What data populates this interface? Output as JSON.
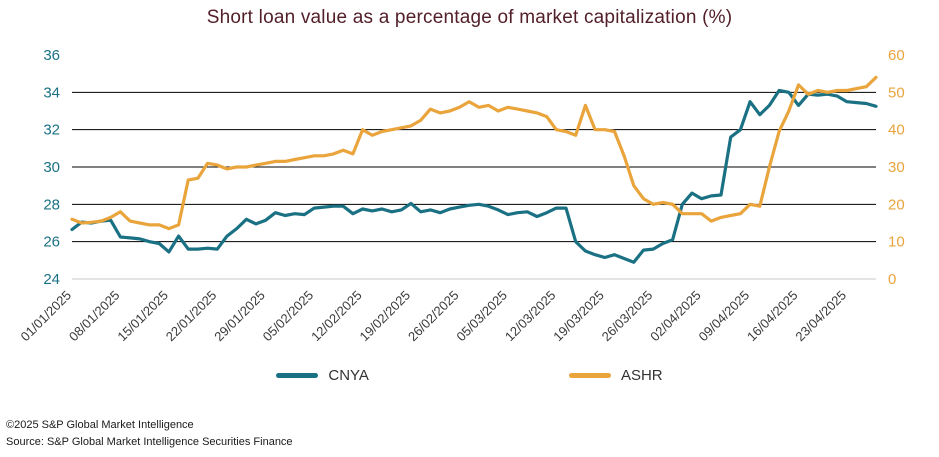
{
  "footer": {
    "copyright": "©2025 S&P Global Market Intelligence",
    "source": "Source: S&P Global Market Intelligence Securities Finance"
  },
  "chart_data": {
    "type": "line",
    "title": "Short loan value as a percentage of market capitalization (%)",
    "x_tick_labels": [
      "01/01/2025",
      "08/01/2025",
      "15/01/2025",
      "22/01/2025",
      "29/01/2025",
      "05/02/2025",
      "12/02/2025",
      "19/02/2025",
      "26/02/2025",
      "05/03/2025",
      "12/03/2025",
      "19/03/2025",
      "26/03/2025",
      "02/04/2025",
      "09/04/2025",
      "16/04/2025",
      "23/04/2025"
    ],
    "points_per_tick": 5,
    "left_axis": {
      "min": 24,
      "max": 36,
      "ticks": [
        24,
        26,
        28,
        30,
        32,
        34,
        36
      ],
      "color": "#1b7184"
    },
    "right_axis": {
      "min": 0,
      "max": 60,
      "ticks": [
        0,
        10,
        20,
        30,
        40,
        50,
        60
      ],
      "color": "#eaa43c"
    },
    "gridline_color": "#000000",
    "baseline_color": "#c8c8c8",
    "legend_position": "bottom",
    "series": [
      {
        "name": "CNYA",
        "axis": "left",
        "color": "#1b7184",
        "values": [
          26.65,
          27.05,
          27.0,
          27.1,
          27.15,
          26.25,
          26.2,
          26.15,
          26.0,
          25.9,
          25.45,
          26.3,
          25.6,
          25.6,
          25.65,
          25.6,
          26.3,
          26.7,
          27.2,
          26.95,
          27.15,
          27.55,
          27.4,
          27.5,
          27.45,
          27.8,
          27.85,
          27.9,
          27.9,
          27.5,
          27.75,
          27.65,
          27.75,
          27.6,
          27.7,
          28.05,
          27.6,
          27.7,
          27.55,
          27.75,
          27.85,
          27.95,
          28.0,
          27.9,
          27.7,
          27.45,
          27.55,
          27.6,
          27.35,
          27.55,
          27.8,
          27.8,
          26.0,
          25.5,
          25.3,
          25.15,
          25.3,
          25.1,
          24.9,
          25.55,
          25.6,
          25.9,
          26.1,
          28.0,
          28.6,
          28.3,
          28.45,
          28.5,
          31.6,
          32.0,
          33.5,
          32.8,
          33.3,
          34.1,
          34.0,
          33.3,
          33.9,
          33.85,
          33.9,
          33.8,
          33.5,
          33.45,
          33.4,
          33.25
        ]
      },
      {
        "name": "ASHR",
        "axis": "right",
        "color": "#eaa43c",
        "values": [
          16.0,
          15.0,
          15.2,
          15.5,
          16.5,
          18.0,
          15.5,
          15.0,
          14.5,
          14.5,
          13.5,
          14.5,
          26.5,
          27.0,
          31.0,
          30.5,
          29.5,
          30.0,
          30.0,
          30.5,
          31.0,
          31.5,
          31.5,
          32.0,
          32.5,
          33.0,
          33.0,
          33.5,
          34.5,
          33.5,
          40.0,
          38.5,
          39.5,
          40.0,
          40.5,
          41.0,
          42.5,
          45.5,
          44.5,
          45.0,
          46.0,
          47.5,
          46.0,
          46.5,
          45.0,
          46.0,
          45.5,
          45.0,
          44.5,
          43.5,
          40.0,
          39.5,
          38.5,
          46.5,
          40.0,
          40.0,
          39.5,
          33.0,
          25.0,
          21.5,
          20.0,
          20.5,
          20.0,
          17.5,
          17.5,
          17.5,
          15.5,
          16.5,
          17.0,
          17.5,
          20.0,
          19.5,
          30.0,
          39.5,
          45.0,
          52.0,
          49.5,
          50.5,
          50.0,
          50.5,
          50.5,
          51.0,
          51.5,
          54.0
        ]
      }
    ]
  }
}
